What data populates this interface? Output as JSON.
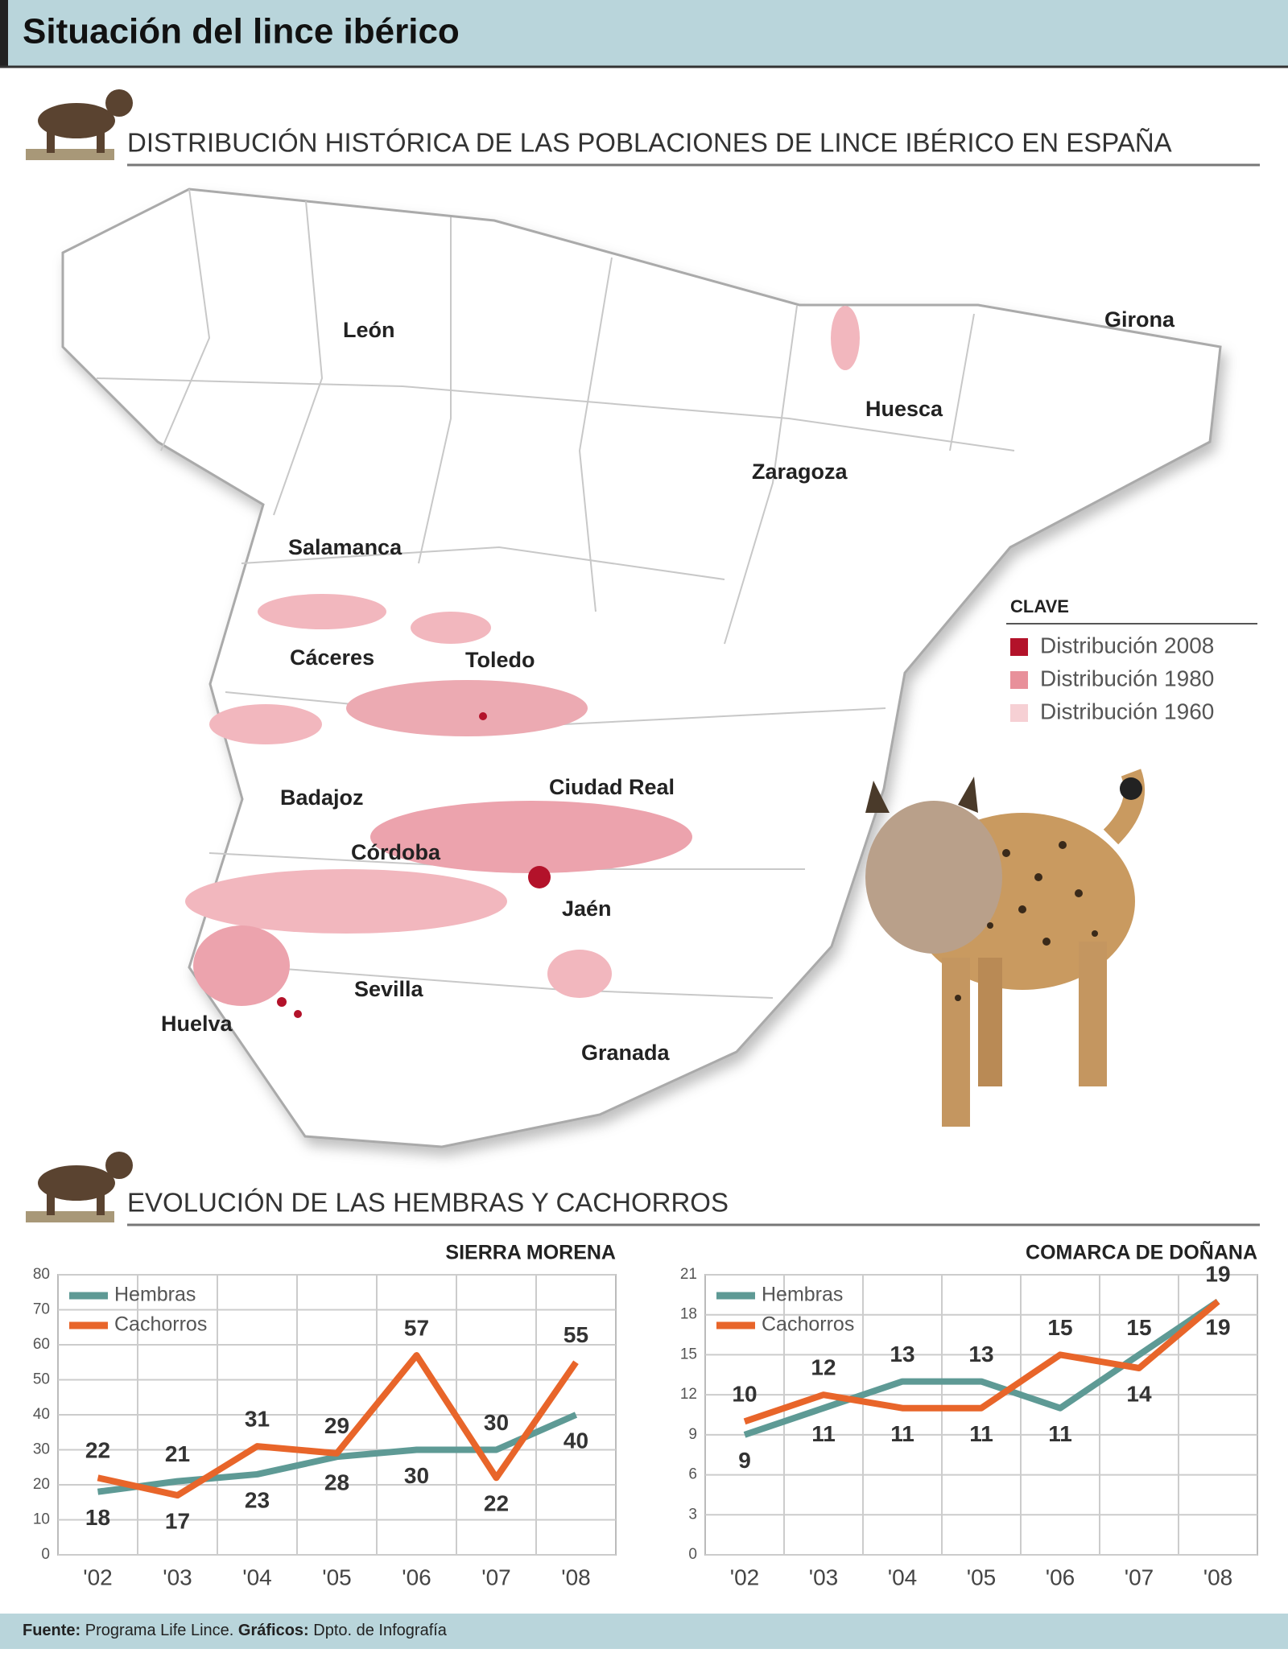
{
  "header": {
    "title": "Situación del lince ibérico"
  },
  "sections": {
    "map": "DISTRIBUCIÓN HISTÓRICA DE LAS POBLACIONES DE LINCE IBÉRICO EN ESPAÑA",
    "evolution": "EVOLUCIÓN DE LAS HEMBRAS Y CACHORROS"
  },
  "map": {
    "labels": [
      "León",
      "Girona",
      "Huesca",
      "Zaragoza",
      "Salamanca",
      "Cáceres",
      "Toledo",
      "Ciudad Real",
      "Badajoz",
      "Córdoba",
      "Jaén",
      "Sevilla",
      "Huelva",
      "Granada"
    ],
    "legend": {
      "title": "CLAVE",
      "items": [
        {
          "name": "Distribución 2008",
          "color": "#b3122a"
        },
        {
          "name": "Distribución 1980",
          "color": "#e8909a"
        },
        {
          "name": "Distribución 1960",
          "color": "#f6d0d4"
        }
      ]
    }
  },
  "chart_data": [
    {
      "type": "line",
      "title": "SIERRA MORENA",
      "categories": [
        "'02",
        "'03",
        "'04",
        "'05",
        "'06",
        "'07",
        "'08"
      ],
      "series": [
        {
          "name": "Hembras",
          "color": "#5e9a95",
          "values": [
            18,
            21,
            23,
            28,
            30,
            30,
            40
          ]
        },
        {
          "name": "Cachorros",
          "color": "#e8652a",
          "values": [
            22,
            17,
            31,
            29,
            57,
            22,
            55
          ]
        }
      ],
      "ylim": [
        0,
        80
      ],
      "yticks": [
        0,
        10,
        20,
        30,
        40,
        50,
        60,
        70,
        80
      ],
      "grid": true,
      "legend": "top-left"
    },
    {
      "type": "line",
      "title": "COMARCA DE DOÑANA",
      "categories": [
        "'02",
        "'03",
        "'04",
        "'05",
        "'06",
        "'07",
        "'08"
      ],
      "series": [
        {
          "name": "Hembras",
          "color": "#5e9a95",
          "values": [
            9,
            11,
            13,
            13,
            11,
            15,
            19
          ]
        },
        {
          "name": "Cachorros",
          "color": "#e8652a",
          "values": [
            10,
            12,
            11,
            11,
            15,
            14,
            19
          ]
        }
      ],
      "ylim": [
        0,
        21
      ],
      "yticks": [
        0,
        3,
        6,
        9,
        12,
        15,
        18,
        21
      ],
      "grid": true,
      "legend": "top-left"
    }
  ],
  "footer": {
    "source_label": "Fuente:",
    "source": "Programa Life Lince.",
    "graphics_label": "Gráficos:",
    "graphics": "Dpto. de Infografía"
  }
}
